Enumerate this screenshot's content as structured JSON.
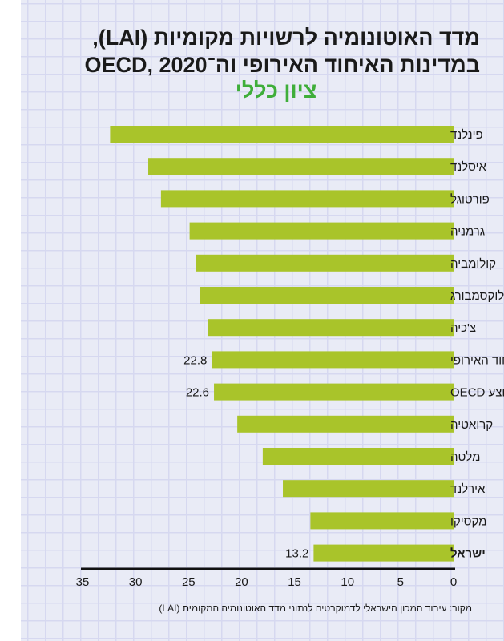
{
  "title_line1": "מדד האוטונומיה לרשויות מקומיות (LAI),",
  "title_line2": "במדינות האיחוד האירופי וה־OECD, 2020",
  "source": "מקור: עיבוד המכון הישראלי לדמוקרטיה לנתוני מדד האוטונומיה המקומית (LAI)",
  "colors": {
    "bar": "#a9c42a",
    "subtitle": "#3fae3a"
  },
  "chart_data": {
    "type": "bar",
    "orientation": "horizontal",
    "title": "מדד האוטונומיה לרשויות מקומיות (LAI), במדינות האיחוד האירופי וה־OECD, 2020",
    "subtitle": "ציון כללי",
    "categories": [
      "פינלנד",
      "איסלנד",
      "פורטוגל",
      "גרמניה",
      "קולומביה",
      "לוקסמבורג",
      "צ'כיה",
      "ממוצע האיחוד האירופי",
      "ממוצע OECD",
      "קרואטיה",
      "מלטה",
      "אירלנד",
      "מקסיקו",
      "ישראל"
    ],
    "values": [
      32.4,
      28.8,
      27.6,
      24.9,
      24.3,
      23.9,
      23.2,
      22.8,
      22.6,
      20.4,
      18.0,
      16.1,
      13.5,
      13.2
    ],
    "data_labels": {
      "7": "22.8",
      "8": "22.6",
      "13": "13.2"
    },
    "highlight": [
      13
    ],
    "xlim": [
      0,
      35
    ],
    "xticks": [
      "0",
      "5",
      "10",
      "15",
      "20",
      "25",
      "30",
      "35"
    ],
    "xlabel": "",
    "ylabel": "",
    "grid": false
  }
}
